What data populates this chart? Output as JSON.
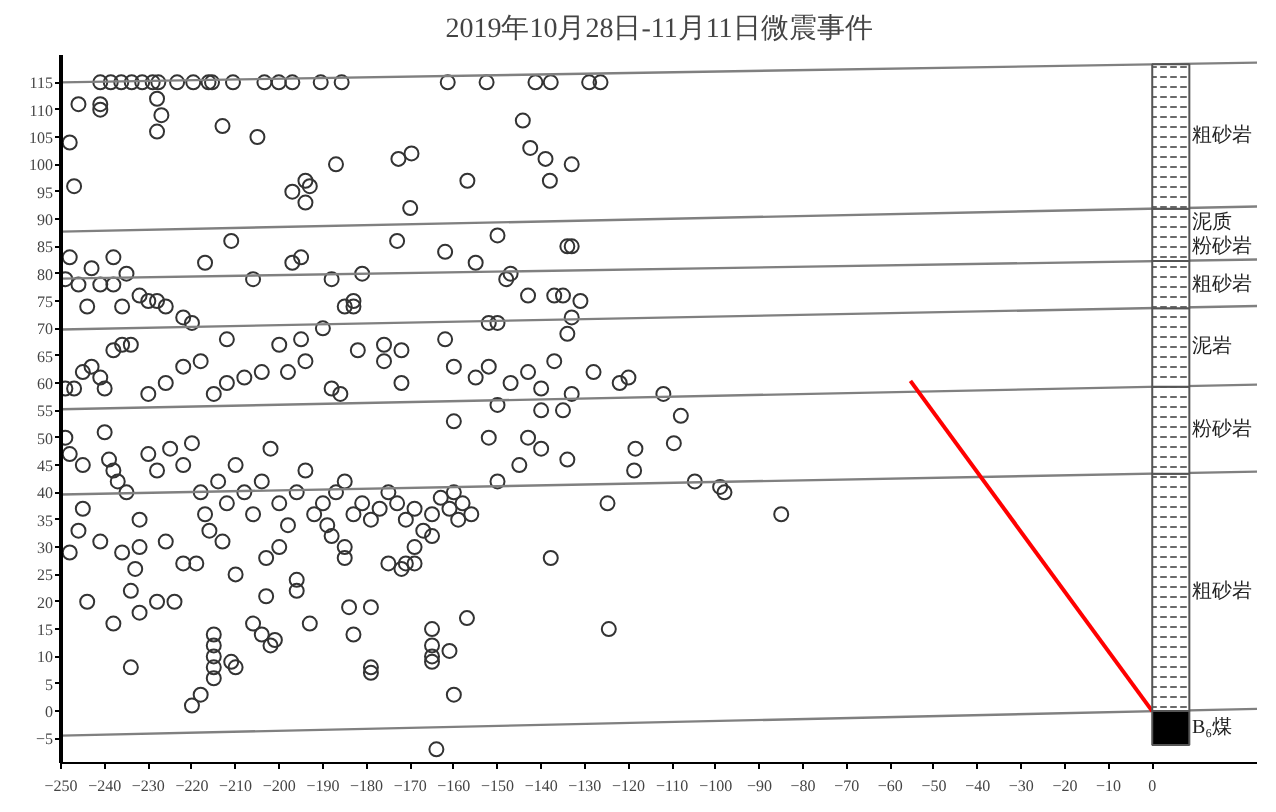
{
  "chart_data": {
    "type": "scatter",
    "title": "2019年10月28日-11月11日微震事件",
    "grid": false,
    "xlim": [
      -250,
      24
    ],
    "ylim": [
      -9.5,
      120
    ],
    "xticks": [
      -250,
      -240,
      -230,
      -220,
      -210,
      -200,
      -190,
      -180,
      -170,
      -160,
      -150,
      -140,
      -130,
      -120,
      -110,
      -100,
      -90,
      -80,
      -70,
      -60,
      -50,
      -40,
      -30,
      -20,
      -10,
      0
    ],
    "yticks": [
      -5,
      0,
      5,
      10,
      15,
      20,
      25,
      30,
      35,
      40,
      45,
      50,
      55,
      60,
      65,
      70,
      75,
      80,
      85,
      90,
      95,
      100,
      105,
      110,
      115
    ],
    "series": [
      {
        "marker": "circle",
        "color": "#333333",
        "x": [
          -241,
          -238.6,
          -236.2,
          -233.8,
          -231.4,
          -229,
          -227.7,
          -223.4,
          -219.7,
          -216.2,
          -215.4,
          -210.6,
          -203.4,
          -200.1,
          -197,
          -190.5,
          -185.7,
          -161.4,
          -152.5,
          -141.3,
          -137.8,
          -129,
          -126.4,
          -248,
          -247,
          -246,
          -241,
          -241,
          -228,
          -228,
          -227,
          -213,
          -205,
          -197,
          -194,
          -194,
          -193,
          -187,
          -172.7,
          -169.7,
          -156.9,
          -144.2,
          -142.5,
          -139,
          -138,
          -133,
          -248,
          -243,
          -238,
          -235,
          -217,
          -211,
          -206,
          -197,
          -195,
          -188,
          -181,
          -173,
          -170,
          -162,
          -155,
          -150,
          -148,
          -147,
          -143,
          -137,
          -135,
          -134,
          -133,
          -131,
          -249,
          -246,
          -244,
          -241,
          -238,
          -236,
          -232,
          -230,
          -228,
          -226,
          -222,
          -220,
          -212,
          -200,
          -195,
          -190,
          -185,
          -183,
          -183,
          -176,
          -172,
          -162,
          -152,
          -150,
          -133,
          -134,
          -249,
          -247,
          -245,
          -243,
          -241,
          -240,
          -238,
          -236,
          -234,
          -230,
          -226,
          -222,
          -218,
          -215,
          -212,
          -208,
          -204,
          -198,
          -194,
          -188,
          -186,
          -182,
          -176,
          -172,
          -160,
          -155,
          -152,
          -150,
          -147,
          -143,
          -140,
          -137,
          -133,
          -128,
          -122,
          -120,
          -112,
          -108,
          -140,
          -135,
          -118.4,
          -109.6,
          -118.7,
          -104.8,
          -99,
          -98,
          -85,
          -124.8,
          -137.8,
          -124.5,
          -140,
          -145,
          -150,
          -134,
          -152,
          -160,
          -143,
          -249,
          -248,
          -245,
          -240,
          -239,
          -238,
          -237,
          -235,
          -232,
          -230,
          -228,
          -225,
          -222,
          -220,
          -218,
          -217,
          -216,
          -214,
          -212,
          -210,
          -208,
          -206,
          -204,
          -202,
          -200,
          -198,
          -196,
          -194,
          -192,
          -190,
          -189,
          -187,
          -185,
          -183,
          -181,
          -179,
          -177,
          -175,
          -173,
          -171,
          -169,
          -167,
          -165,
          -163,
          -161,
          -160,
          -159,
          -158,
          -156,
          -169,
          -171,
          -165,
          -213,
          -203,
          -188,
          -185,
          -245,
          -246,
          -241,
          -236,
          -232,
          -226,
          -200,
          -248,
          -244,
          -238,
          -234,
          -233,
          -232,
          -228,
          -234,
          -224,
          -222,
          -219,
          -215,
          -215,
          -215,
          -215,
          -215,
          -211,
          -210,
          -210,
          -206,
          -204,
          -202,
          -201,
          -203,
          -196,
          -196,
          -193,
          -184,
          -183,
          -179,
          -179,
          -179,
          -185,
          -175,
          -172,
          -169,
          -165,
          -165,
          -165,
          -165,
          -161,
          -160,
          -157,
          -220,
          -218,
          -164
        ],
        "values": [
          115,
          115,
          115,
          115,
          115,
          115,
          115,
          115,
          115,
          115,
          115,
          115,
          115,
          115,
          115,
          115,
          115,
          115,
          115,
          115,
          115,
          115,
          115,
          104,
          96,
          111,
          111,
          110,
          112,
          106,
          109,
          107,
          105,
          95,
          93,
          97,
          96,
          100,
          101,
          102,
          97,
          108,
          103,
          101,
          97,
          100,
          83,
          81,
          83,
          80,
          82,
          86,
          79,
          82,
          83,
          79,
          80,
          86,
          92,
          84,
          82,
          87,
          79,
          80,
          76,
          76,
          76,
          85,
          85,
          75,
          79,
          78,
          74,
          78,
          78,
          74,
          76,
          75,
          75,
          74,
          72,
          71,
          68,
          67,
          68,
          70,
          74,
          74,
          75,
          67,
          66,
          68,
          71,
          71,
          72,
          69,
          59,
          59,
          62,
          63,
          61,
          59,
          66,
          67,
          67,
          58,
          60,
          63,
          64,
          58,
          60,
          61,
          62,
          62,
          64,
          59,
          58,
          66,
          64,
          60,
          63,
          61,
          63,
          56,
          60,
          62,
          59,
          64,
          58,
          62,
          60,
          61,
          58,
          54,
          55,
          55,
          48,
          49,
          44,
          42,
          41,
          40,
          36,
          38,
          28,
          15,
          48,
          45,
          42,
          46,
          50,
          53,
          50,
          50,
          47,
          45,
          51,
          46,
          44,
          42,
          40,
          35,
          47,
          44,
          48,
          45,
          49,
          40,
          36,
          33,
          42,
          38,
          45,
          40,
          36,
          42,
          48,
          38,
          34,
          40,
          44,
          36,
          38,
          34,
          40,
          42,
          36,
          38,
          35,
          37,
          40,
          38,
          35,
          37,
          33,
          36,
          39,
          37,
          40,
          35,
          38,
          36,
          30,
          27,
          32,
          31,
          28,
          32,
          30,
          37,
          33,
          31,
          29,
          30,
          31,
          30,
          29,
          20,
          16,
          22,
          26,
          18,
          20,
          8,
          20,
          27,
          27,
          14,
          12,
          10,
          8,
          6,
          9,
          8,
          25,
          16,
          14,
          12,
          13,
          21,
          24,
          22,
          16,
          19,
          14,
          19,
          8,
          7,
          28,
          27,
          26,
          27,
          15,
          10,
          9,
          12,
          11,
          3,
          17,
          1,
          3,
          -7
        ]
      },
      {
        "type": "line",
        "color": "#808080",
        "x": [
          -250,
          24
        ],
        "values": [
          115,
          118.6
        ]
      },
      {
        "type": "line",
        "color": "#808080",
        "x": [
          -250,
          24
        ],
        "values": [
          87.7,
          92.3
        ]
      },
      {
        "type": "line",
        "color": "#808080",
        "x": [
          -250,
          24
        ],
        "values": [
          79.1,
          82.6
        ]
      },
      {
        "type": "line",
        "color": "#808080",
        "x": [
          -250,
          24
        ],
        "values": [
          69.8,
          74.1
        ]
      },
      {
        "type": "line",
        "color": "#808080",
        "x": [
          -250,
          24
        ],
        "values": [
          55.2,
          59.7
        ]
      },
      {
        "type": "line",
        "color": "#808080",
        "x": [
          -250,
          24
        ],
        "values": [
          39.6,
          43.8
        ]
      },
      {
        "type": "line",
        "color": "#808080",
        "x": [
          -250,
          24
        ],
        "values": [
          -4.5,
          0.4
        ]
      },
      {
        "type": "line",
        "color": "#ff0000",
        "x": [
          -55.4,
          0
        ],
        "values": [
          60.4,
          0
        ]
      },
      {
        "type": "bar",
        "x": [
          4.25
        ],
        "values": [
          -6.2
        ],
        "color": "#000000",
        "name": "B₆煤"
      },
      {
        "type": "bar",
        "x": [
          4.25
        ],
        "values": [
          43.4
        ],
        "color": "#ffffff",
        "name": "粗砂岩"
      },
      {
        "type": "bar",
        "x": [
          4.25
        ],
        "values": [
          15.9
        ],
        "color": "#ffffff",
        "name": "粉砂岩"
      },
      {
        "type": "bar",
        "x": [
          4.25
        ],
        "values": [
          14.4
        ],
        "color": "#ffffff",
        "name": "泥岩"
      },
      {
        "type": "bar",
        "x": [
          4.25
        ],
        "values": [
          8.6
        ],
        "color": "#ffffff",
        "name": "粗砂岩"
      },
      {
        "type": "bar",
        "x": [
          4.25
        ],
        "values": [
          9.6
        ],
        "color": "#ffffff",
        "name": "泥质粉砂岩"
      },
      {
        "type": "bar",
        "x": [
          4.25
        ],
        "values": [
          26.4
        ],
        "color": "#ffffff",
        "name": "粗砂岩"
      }
    ],
    "stacked": true
  }
}
